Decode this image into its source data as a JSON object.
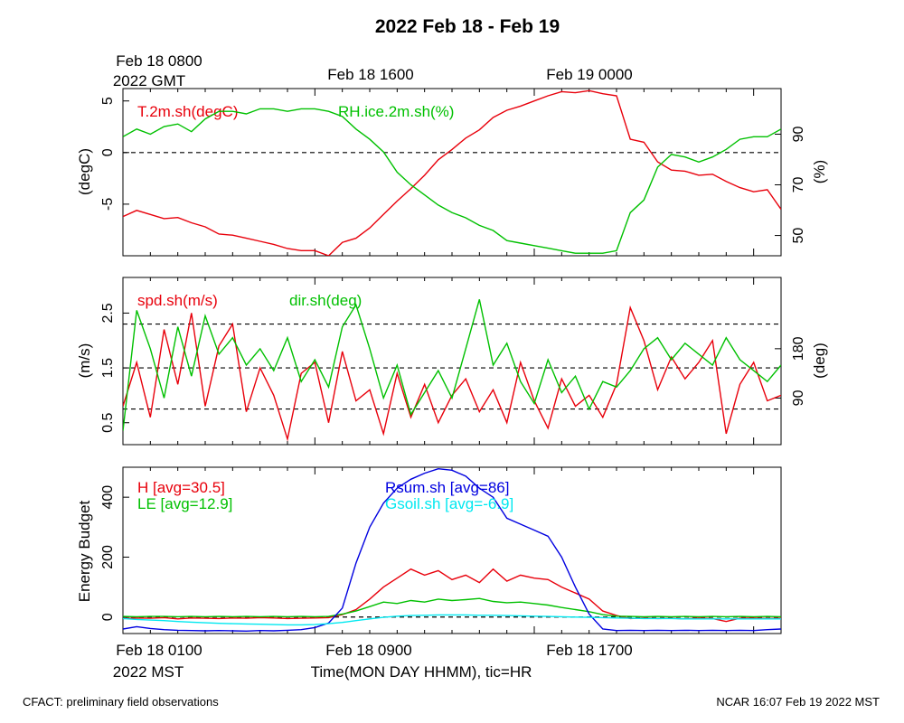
{
  "page": {
    "title": "2022 Feb 18 - Feb 19",
    "top_time_labels": [
      "Feb 18 0800",
      "Feb 18 1600",
      "Feb 19 0000"
    ],
    "top_zone": "2022 GMT",
    "bottom_time_labels": [
      "Feb 18 0100",
      "Feb 18 0900",
      "Feb 18 1700"
    ],
    "bottom_zone": "2022 MST",
    "xlabel": "Time(MON DAY HHMM), tic=HR",
    "footer_left": "CFACT: preliminary field observations",
    "footer_right": "NCAR 16:07 Feb 19 2022 MST",
    "colors": {
      "red": "#e8000b",
      "green": "#00c000",
      "blue": "#0000e0",
      "cyan": "#00e8f0",
      "black": "#000000"
    }
  },
  "chart_data": [
    {
      "type": "line",
      "panel": "temperature-rh",
      "xlim": [
        1,
        25
      ],
      "ylabel": "(degC)",
      "ylim": [
        -10,
        6.2
      ],
      "yticks": [
        5,
        0,
        -5
      ],
      "y2label": "(%)",
      "y2lim": [
        42,
        108
      ],
      "y2ticks": [
        90,
        70,
        50
      ],
      "reference_lines": [
        0
      ],
      "series": [
        {
          "name": "T.2m.sh(degC)",
          "axis": "left",
          "color": "#e8000b",
          "x": [
            1,
            1.5,
            2,
            2.5,
            3,
            3.5,
            4,
            4.5,
            5,
            5.5,
            6,
            6.5,
            7,
            7.5,
            8,
            8.5,
            9,
            9.5,
            10,
            10.5,
            11,
            11.5,
            12,
            12.5,
            13,
            13.5,
            14,
            14.5,
            15,
            15.5,
            16,
            16.5,
            17,
            17.5,
            18,
            18.5,
            19,
            19.5,
            20,
            20.5,
            21,
            21.5,
            22,
            22.5,
            23,
            23.5,
            24,
            24.5,
            25
          ],
          "values": [
            -6.2,
            -5.6,
            -6.0,
            -6.4,
            -6.3,
            -6.8,
            -7.2,
            -7.9,
            -8.0,
            -8.3,
            -8.6,
            -8.9,
            -9.3,
            -9.5,
            -9.5,
            -10.0,
            -8.7,
            -8.3,
            -7.3,
            -6.0,
            -4.7,
            -3.5,
            -2.2,
            -0.7,
            0.3,
            1.4,
            2.2,
            3.4,
            4.1,
            4.5,
            5.0,
            5.5,
            5.9,
            5.8,
            6.0,
            5.7,
            5.5,
            1.3,
            1.0,
            -0.9,
            -1.7,
            -1.8,
            -2.2,
            -2.1,
            -2.8,
            -3.4,
            -3.8,
            -3.6,
            -5.5
          ]
        },
        {
          "name": "RH.ice.2m.sh(%)",
          "axis": "right",
          "color": "#00c000",
          "x": [
            1,
            1.5,
            2,
            2.5,
            3,
            3.5,
            4,
            4.5,
            5,
            5.5,
            6,
            6.5,
            7,
            7.5,
            8,
            8.5,
            9,
            9.5,
            10,
            10.5,
            11,
            11.5,
            12,
            12.5,
            13,
            13.5,
            14,
            14.5,
            15,
            15.5,
            16,
            16.5,
            17,
            17.5,
            18,
            18.5,
            19,
            19.5,
            20,
            20.5,
            21,
            21.5,
            22,
            22.5,
            23,
            23.5,
            24,
            24.5,
            25
          ],
          "values": [
            89,
            92,
            90,
            93,
            94,
            91,
            96,
            99,
            99,
            98,
            100,
            100,
            99,
            100,
            100,
            99,
            97,
            92,
            88,
            83,
            75,
            70,
            66,
            62,
            59,
            57,
            54,
            52,
            48,
            47,
            46,
            45,
            44,
            43,
            43,
            43,
            44,
            59,
            64,
            77,
            82,
            81,
            79,
            81,
            84,
            88,
            89,
            89,
            92
          ]
        }
      ]
    },
    {
      "type": "line",
      "panel": "wind",
      "xlim": [
        1,
        25
      ],
      "ylabel": "(m/s)",
      "ylim": [
        0.1,
        3.15
      ],
      "yticks": [
        2.5,
        1.5,
        0.5
      ],
      "y2label": "(deg)",
      "y2lim": [
        5,
        310
      ],
      "y2ticks": [
        180,
        90
      ],
      "reference_lines": [
        2.3,
        1.5,
        0.75
      ],
      "series": [
        {
          "name": "spd.sh(m/s)",
          "axis": "left",
          "color": "#e8000b",
          "x": [
            1,
            1.5,
            2,
            2.5,
            3,
            3.5,
            4,
            4.5,
            5,
            5.5,
            6,
            6.5,
            7,
            7.5,
            8,
            8.5,
            9,
            9.5,
            10,
            10.5,
            11,
            11.5,
            12,
            12.5,
            13,
            13.5,
            14,
            14.5,
            15,
            15.5,
            16,
            16.5,
            17,
            17.5,
            18,
            18.5,
            19,
            19.5,
            20,
            20.5,
            21,
            21.5,
            22,
            22.5,
            23,
            23.5,
            24,
            24.5,
            25
          ],
          "values": [
            0.8,
            1.6,
            0.6,
            2.2,
            1.2,
            2.5,
            0.8,
            1.9,
            2.3,
            0.7,
            1.5,
            1.0,
            0.2,
            1.4,
            1.6,
            0.5,
            1.8,
            0.9,
            1.1,
            0.3,
            1.4,
            0.6,
            1.2,
            0.5,
            1.0,
            1.3,
            0.7,
            1.1,
            0.5,
            1.6,
            0.9,
            0.4,
            1.3,
            0.8,
            1.0,
            0.6,
            1.2,
            2.6,
            2.0,
            1.1,
            1.7,
            1.3,
            1.6,
            2.0,
            0.3,
            1.2,
            1.6,
            0.9,
            1.0
          ]
        },
        {
          "name": "dir.sh(deg)",
          "axis": "right",
          "color": "#00c000",
          "x": [
            1,
            1.5,
            2,
            2.5,
            3,
            3.5,
            4,
            4.5,
            5,
            5.5,
            6,
            6.5,
            7,
            7.5,
            8,
            8.5,
            9,
            9.5,
            10,
            10.5,
            11,
            11.5,
            12,
            12.5,
            13,
            13.5,
            14,
            14.5,
            15,
            15.5,
            16,
            16.5,
            17,
            17.5,
            18,
            18.5,
            19,
            19.5,
            20,
            20.5,
            21,
            21.5,
            22,
            22.5,
            23,
            23.5,
            24,
            24.5,
            25
          ],
          "values": [
            30,
            250,
            180,
            90,
            220,
            130,
            240,
            170,
            200,
            150,
            180,
            140,
            200,
            120,
            160,
            110,
            220,
            260,
            180,
            90,
            150,
            60,
            100,
            140,
            90,
            180,
            270,
            150,
            190,
            120,
            80,
            160,
            100,
            130,
            70,
            120,
            110,
            140,
            180,
            200,
            160,
            190,
            170,
            150,
            200,
            160,
            140,
            120,
            150
          ]
        }
      ]
    },
    {
      "type": "line",
      "panel": "energy-budget",
      "xlim": [
        1,
        25
      ],
      "ylabel": "Energy Budget",
      "ylim": [
        -55,
        500
      ],
      "yticks": [
        400,
        200,
        0
      ],
      "reference_lines": [
        0
      ],
      "series": [
        {
          "name": "H [avg=30.5]",
          "color": "#e8000b",
          "x": [
            1,
            1.5,
            2,
            2.5,
            3,
            3.5,
            4,
            4.5,
            5,
            5.5,
            6,
            6.5,
            7,
            7.5,
            8,
            8.5,
            9,
            9.5,
            10,
            10.5,
            11,
            11.5,
            12,
            12.5,
            13,
            13.5,
            14,
            14.5,
            15,
            15.5,
            16,
            16.5,
            17,
            17.5,
            18,
            18.5,
            19,
            19.5,
            20,
            20.5,
            21,
            21.5,
            22,
            22.5,
            23,
            23.5,
            24,
            24.5,
            25
          ],
          "values": [
            -5,
            -3,
            -4,
            -2,
            -6,
            -3,
            -4,
            -5,
            -3,
            -4,
            -2,
            -3,
            -5,
            -4,
            -3,
            -2,
            8,
            25,
            60,
            100,
            130,
            160,
            140,
            155,
            125,
            140,
            115,
            160,
            120,
            140,
            130,
            125,
            100,
            80,
            60,
            20,
            5,
            -5,
            -3,
            -5,
            -4,
            -6,
            -3,
            -5,
            -15,
            -4,
            -3,
            -5,
            -4
          ]
        },
        {
          "name": "LE [avg=12.9]",
          "color": "#00c000",
          "x": [
            1,
            1.5,
            2,
            2.5,
            3,
            3.5,
            4,
            4.5,
            5,
            5.5,
            6,
            6.5,
            7,
            7.5,
            8,
            8.5,
            9,
            9.5,
            10,
            10.5,
            11,
            11.5,
            12,
            12.5,
            13,
            13.5,
            14,
            14.5,
            15,
            15.5,
            16,
            16.5,
            17,
            17.5,
            18,
            18.5,
            19,
            19.5,
            20,
            20.5,
            21,
            21.5,
            22,
            22.5,
            23,
            23.5,
            24,
            24.5,
            25
          ],
          "values": [
            2,
            1,
            2,
            2,
            1,
            2,
            1,
            2,
            1,
            2,
            1,
            2,
            1,
            2,
            1,
            2,
            10,
            20,
            35,
            50,
            45,
            55,
            50,
            60,
            55,
            58,
            62,
            52,
            48,
            50,
            45,
            40,
            32,
            25,
            18,
            8,
            3,
            2,
            1,
            2,
            1,
            2,
            1,
            2,
            1,
            2,
            1,
            2,
            1
          ]
        },
        {
          "name": "Rsum.sh [avg=86]",
          "color": "#0000e0",
          "x": [
            1,
            1.5,
            2,
            2.5,
            3,
            3.5,
            4,
            4.5,
            5,
            5.5,
            6,
            6.5,
            7,
            7.5,
            8,
            8.5,
            9,
            9.5,
            10,
            10.5,
            11,
            11.5,
            12,
            12.5,
            13,
            13.5,
            14,
            14.5,
            15,
            15.5,
            16,
            16.5,
            17,
            17.5,
            18,
            18.5,
            19,
            19.5,
            20,
            20.5,
            21,
            21.5,
            22,
            22.5,
            23,
            23.5,
            24,
            24.5,
            25
          ],
          "values": [
            -40,
            -32,
            -38,
            -42,
            -44,
            -45,
            -46,
            -45,
            -46,
            -47,
            -45,
            -46,
            -44,
            -42,
            -35,
            -20,
            30,
            180,
            300,
            380,
            430,
            460,
            480,
            495,
            490,
            470,
            430,
            400,
            330,
            310,
            290,
            270,
            200,
            100,
            10,
            -40,
            -45,
            -44,
            -45,
            -44,
            -45,
            -44,
            -45,
            -44,
            -45,
            -44,
            -45,
            -42,
            -40
          ]
        },
        {
          "name": "Gsoil.sh [avg=-6.9]",
          "color": "#00e8f0",
          "x": [
            1,
            1.5,
            2,
            2.5,
            3,
            3.5,
            4,
            4.5,
            5,
            5.5,
            6,
            6.5,
            7,
            7.5,
            8,
            8.5,
            9,
            9.5,
            10,
            10.5,
            11,
            11.5,
            12,
            12.5,
            13,
            13.5,
            14,
            14.5,
            15,
            15.5,
            16,
            16.5,
            17,
            17.5,
            18,
            18.5,
            19,
            19.5,
            20,
            20.5,
            21,
            21.5,
            22,
            22.5,
            23,
            23.5,
            24,
            24.5,
            25
          ],
          "values": [
            -5,
            -8,
            -10,
            -12,
            -15,
            -17,
            -19,
            -21,
            -22,
            -23,
            -24,
            -25,
            -26,
            -26,
            -25,
            -22,
            -18,
            -12,
            -6,
            -1,
            3,
            5,
            6,
            7,
            7,
            7,
            6,
            6,
            5,
            4,
            3,
            2,
            1,
            0,
            -1,
            -2,
            -3,
            -4,
            -5,
            -5,
            -5,
            -6,
            -6,
            -6,
            -6,
            -6,
            -6,
            -6,
            -6
          ]
        }
      ]
    }
  ]
}
